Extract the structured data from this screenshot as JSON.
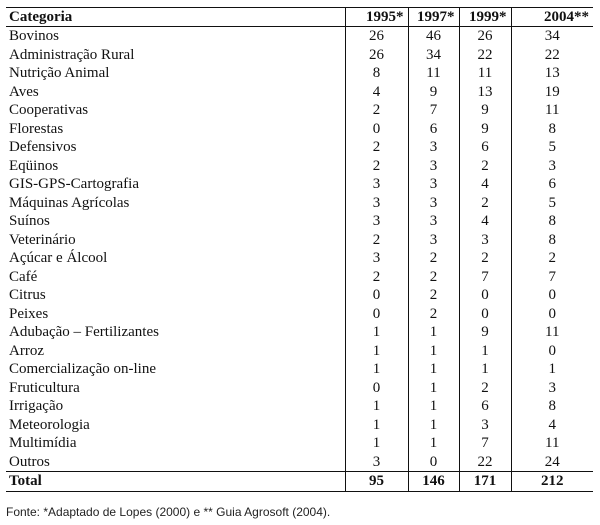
{
  "table": {
    "headers": [
      "Categoria",
      "1995*",
      "1997*",
      "1999*",
      "2004**"
    ],
    "rows": [
      [
        "Bovinos",
        "26",
        "46",
        "26",
        "34"
      ],
      [
        "Administração Rural",
        "26",
        "34",
        "22",
        "22"
      ],
      [
        "Nutrição Animal",
        "8",
        "11",
        "11",
        "13"
      ],
      [
        "Aves",
        "4",
        "9",
        "13",
        "19"
      ],
      [
        "Cooperativas",
        "2",
        "7",
        "9",
        "11"
      ],
      [
        "Florestas",
        "0",
        "6",
        "9",
        "8"
      ],
      [
        "Defensivos",
        "2",
        "3",
        "6",
        "5"
      ],
      [
        "Eqüinos",
        "2",
        "3",
        "2",
        "3"
      ],
      [
        "GIS-GPS-Cartografia",
        "3",
        "3",
        "4",
        "6"
      ],
      [
        "Máquinas Agrícolas",
        "3",
        "3",
        "2",
        "5"
      ],
      [
        "Suínos",
        "3",
        "3",
        "4",
        "8"
      ],
      [
        "Veterinário",
        "2",
        "3",
        "3",
        "8"
      ],
      [
        "Açúcar e Álcool",
        "3",
        "2",
        "2",
        "2"
      ],
      [
        "Café",
        "2",
        "2",
        "7",
        "7"
      ],
      [
        "Citrus",
        "0",
        "2",
        "0",
        "0"
      ],
      [
        "Peixes",
        "0",
        "2",
        "0",
        "0"
      ],
      [
        "Adubação – Fertilizantes",
        "1",
        "1",
        "9",
        "11"
      ],
      [
        "Arroz",
        "1",
        "1",
        "1",
        "0"
      ],
      [
        "Comercialização on-line",
        "1",
        "1",
        "1",
        "1"
      ],
      [
        "Fruticultura",
        "0",
        "1",
        "2",
        "3"
      ],
      [
        "Irrigação",
        "1",
        "1",
        "6",
        "8"
      ],
      [
        "Meteorologia",
        "1",
        "1",
        "3",
        "4"
      ],
      [
        "Multimídia",
        "1",
        "1",
        "7",
        "11"
      ],
      [
        "Outros",
        "3",
        "0",
        "22",
        "24"
      ]
    ],
    "total": [
      "Total",
      "95",
      "146",
      "171",
      "212"
    ]
  },
  "source": "Fonte: *Adaptado de Lopes (2000) e ** Guia Agrosoft (2004)."
}
